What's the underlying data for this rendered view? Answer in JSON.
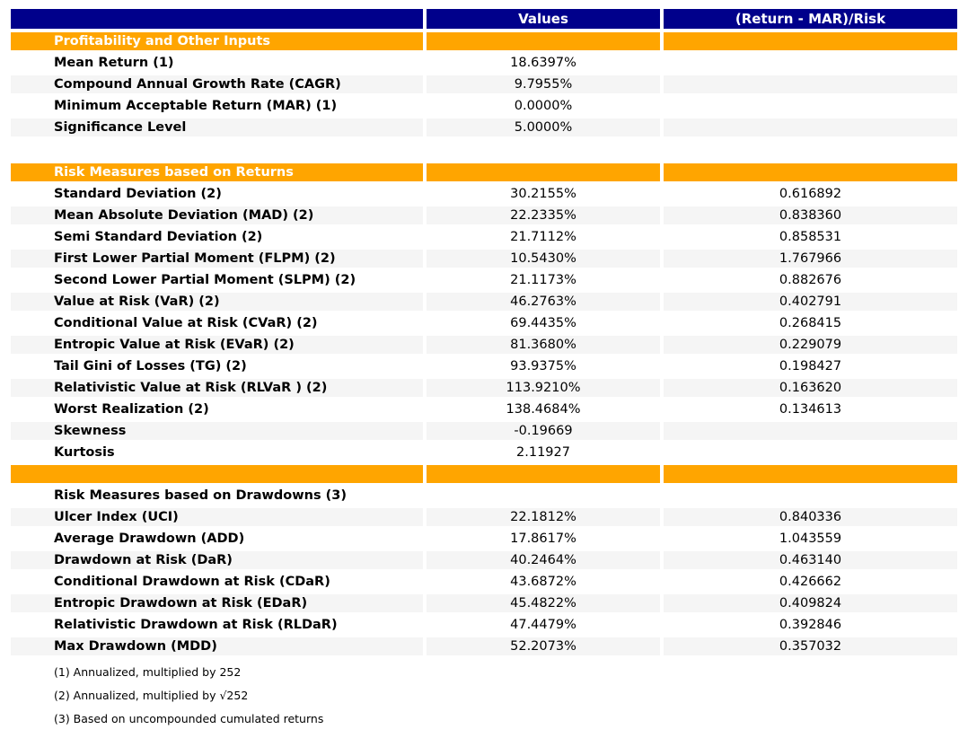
{
  "chart_data": {
    "type": "table",
    "columns": [
      "",
      "Values",
      "(Return - MAR)/Risk"
    ],
    "rows": [
      {
        "kind": "section",
        "label": "Profitability and Other Inputs",
        "value": "",
        "ratio": "",
        "shade": false
      },
      {
        "kind": "data",
        "label": "Mean Return (1)",
        "value": "18.6397%",
        "ratio": "",
        "shade": false
      },
      {
        "kind": "data",
        "label": "Compound Annual Growth Rate (CAGR)",
        "value": "9.7955%",
        "ratio": "",
        "shade": true
      },
      {
        "kind": "data",
        "label": "Minimum Acceptable Return (MAR) (1)",
        "value": "0.0000%",
        "ratio": "",
        "shade": false
      },
      {
        "kind": "data",
        "label": "Significance Level",
        "value": "5.0000%",
        "ratio": "",
        "shade": true
      },
      {
        "kind": "spacer",
        "label": "",
        "value": "",
        "ratio": "",
        "shade": false
      },
      {
        "kind": "section",
        "label": "Risk Measures based on Returns",
        "value": "",
        "ratio": "",
        "shade": false
      },
      {
        "kind": "data",
        "label": "Standard Deviation (2)",
        "value": "30.2155%",
        "ratio": "0.616892",
        "shade": false
      },
      {
        "kind": "data",
        "label": "Mean Absolute Deviation (MAD) (2)",
        "value": "22.2335%",
        "ratio": "0.838360",
        "shade": true
      },
      {
        "kind": "data",
        "label": "Semi Standard Deviation (2)",
        "value": "21.7112%",
        "ratio": "0.858531",
        "shade": false
      },
      {
        "kind": "data",
        "label": "First Lower Partial Moment (FLPM) (2)",
        "value": "10.5430%",
        "ratio": "1.767966",
        "shade": true
      },
      {
        "kind": "data",
        "label": "Second Lower Partial Moment (SLPM) (2)",
        "value": "21.1173%",
        "ratio": "0.882676",
        "shade": false
      },
      {
        "kind": "data",
        "label": "Value at Risk (VaR) (2)",
        "value": "46.2763%",
        "ratio": "0.402791",
        "shade": true
      },
      {
        "kind": "data",
        "label": "Conditional Value at Risk (CVaR) (2)",
        "value": "69.4435%",
        "ratio": "0.268415",
        "shade": false
      },
      {
        "kind": "data",
        "label": "Entropic Value at Risk (EVaR) (2)",
        "value": "81.3680%",
        "ratio": "0.229079",
        "shade": true
      },
      {
        "kind": "data",
        "label": "Tail Gini of Losses (TG) (2)",
        "value": "93.9375%",
        "ratio": "0.198427",
        "shade": false
      },
      {
        "kind": "data",
        "label": "Relativistic Value at Risk (RLVaR ) (2)",
        "value": "113.9210%",
        "ratio": "0.163620",
        "shade": true
      },
      {
        "kind": "data",
        "label": "Worst Realization (2)",
        "value": "138.4684%",
        "ratio": "0.134613",
        "shade": false
      },
      {
        "kind": "data",
        "label": "Skewness",
        "value": "-0.19669",
        "ratio": "",
        "shade": true
      },
      {
        "kind": "data",
        "label": "Kurtosis",
        "value": "2.11927",
        "ratio": "",
        "shade": false
      },
      {
        "kind": "orange-empty",
        "label": "",
        "value": "",
        "ratio": "",
        "shade": false
      },
      {
        "kind": "plain-section",
        "label": "Risk Measures based on Drawdowns (3)",
        "value": "",
        "ratio": "",
        "shade": false
      },
      {
        "kind": "data",
        "label": "Ulcer Index (UCI)",
        "value": "22.1812%",
        "ratio": "0.840336",
        "shade": true
      },
      {
        "kind": "data",
        "label": "Average Drawdown (ADD)",
        "value": "17.8617%",
        "ratio": "1.043559",
        "shade": false
      },
      {
        "kind": "data",
        "label": "Drawdown at Risk (DaR)",
        "value": "40.2464%",
        "ratio": "0.463140",
        "shade": true
      },
      {
        "kind": "data",
        "label": "Conditional Drawdown at Risk (CDaR)",
        "value": "43.6872%",
        "ratio": "0.426662",
        "shade": false
      },
      {
        "kind": "data",
        "label": "Entropic Drawdown at Risk (EDaR)",
        "value": "45.4822%",
        "ratio": "0.409824",
        "shade": true
      },
      {
        "kind": "data",
        "label": "Relativistic Drawdown at Risk (RLDaR)",
        "value": "47.4479%",
        "ratio": "0.392846",
        "shade": false
      },
      {
        "kind": "data",
        "label": "Max Drawdown (MDD)",
        "value": "52.2073%",
        "ratio": "0.357032",
        "shade": true
      }
    ],
    "footnotes": [
      "(1) Annualized, multiplied by 252",
      "(2) Annualized, multiplied by √252",
      "(3) Based on uncompounded cumulated returns"
    ],
    "colors": {
      "header_bg": "#00008B",
      "section_bg": "#FFA500",
      "stripe_bg": "#F5F5F5",
      "header_text": "#FFFFFF",
      "body_text": "#000000"
    },
    "layout": {
      "legend": "none",
      "grid": "white cell dividers",
      "column_alignment": [
        "left",
        "center",
        "center"
      ]
    }
  }
}
